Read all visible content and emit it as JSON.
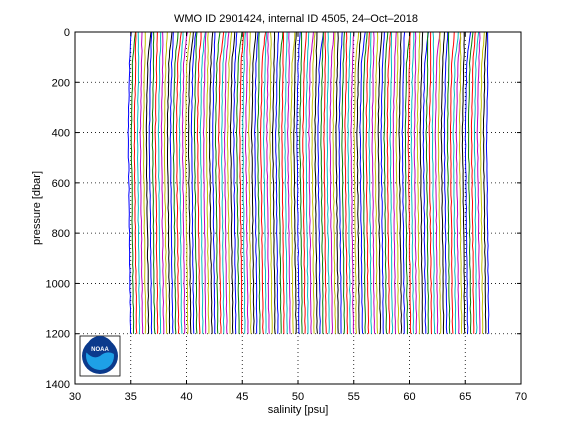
{
  "chart_data": {
    "type": "line",
    "title": "WMO ID 2901424, internal ID 4505, 24–Oct–2018",
    "xlabel": "salinity [psu]",
    "ylabel": "pressure [dbar]",
    "xlim": [
      30,
      70
    ],
    "ylim": [
      0,
      1400
    ],
    "y_reversed": true,
    "grid": true,
    "grid_style": "dotted",
    "x_ticks": [
      "30",
      "35",
      "40",
      "45",
      "50",
      "55",
      "60",
      "65",
      "70"
    ],
    "y_ticks": [
      "0",
      "200",
      "400",
      "600",
      "800",
      "1000",
      "1200",
      "1400"
    ],
    "profile_count": 120,
    "profile_offset_step": 0.27,
    "profile_start_salinity": 34.8,
    "profile_pressure_range": [
      0,
      1200
    ],
    "colors": [
      "#0000ff",
      "#008000",
      "#ff0000",
      "#00bfbf",
      "#bf00bf",
      "#bfbf00",
      "#000000"
    ],
    "logo": {
      "name": "noaa-logo",
      "text": "NOAA",
      "colors": {
        "outer": "#0b3a8c",
        "inner": "#1ea0e6",
        "wave": "#ffffff"
      }
    }
  }
}
